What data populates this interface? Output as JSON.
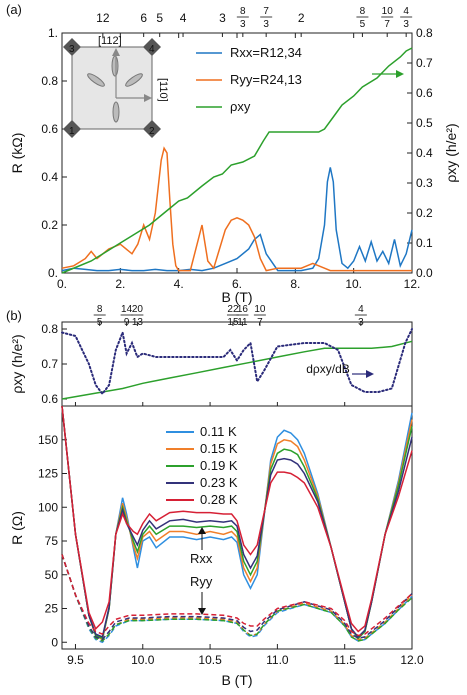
{
  "chart_data": [
    {
      "type": "line",
      "panel_label": "(a)",
      "xlabel": "B (T)",
      "ylabel_left": "R (kΩ)",
      "ylabel_right": "ρxy (h/e²)",
      "xlim": [
        0,
        12
      ],
      "ylim_left": [
        0,
        1.0
      ],
      "ylim_right": [
        0,
        0.8
      ],
      "x_ticks": [
        "0.",
        "2.",
        "4.",
        "6.",
        "8.",
        "10.",
        "12."
      ],
      "y_left_ticks": [
        "0.",
        "0.2",
        "0.4",
        "0.6",
        "0.8",
        "1."
      ],
      "y_right_ticks": [
        "0.0",
        "0.1",
        "0.2",
        "0.3",
        "0.4",
        "0.5",
        "0.6",
        "0.7",
        "0.8"
      ],
      "filling_factors": [
        {
          "label": "12",
          "B": 1.4
        },
        {
          "label": "6",
          "B": 2.8
        },
        {
          "label": "5",
          "B": 3.35
        },
        {
          "label": "4",
          "B": 4.15
        },
        {
          "label": "3",
          "B": 5.5
        },
        {
          "label": "8/3",
          "B": 6.2
        },
        {
          "label": "7/3",
          "B": 7.0
        },
        {
          "label": "2",
          "B": 8.2
        },
        {
          "label": "8/5",
          "B": 10.3
        },
        {
          "label": "10/7",
          "B": 11.15
        },
        {
          "label": "4/3",
          "B": 11.8
        }
      ],
      "inset": {
        "direction_top": "[112]",
        "direction_right": "[110]",
        "contacts": [
          "1",
          "2",
          "3",
          "4"
        ]
      },
      "series": [
        {
          "name": "Rxx=R12,34",
          "color": "#1f77c4",
          "axis": "left",
          "x": [
            0,
            0.4,
            0.8,
            1.2,
            1.6,
            2.0,
            2.4,
            2.8,
            3.2,
            3.6,
            4.0,
            4.4,
            4.8,
            5.2,
            5.6,
            6.0,
            6.4,
            6.6,
            6.8,
            7.0,
            7.4,
            7.8,
            8.2,
            8.6,
            8.8,
            9.0,
            9.1,
            9.2,
            9.3,
            9.4,
            9.6,
            9.8,
            10.0,
            10.2,
            10.4,
            10.6,
            10.8,
            11.0,
            11.2,
            11.4,
            11.6,
            11.8,
            12.0
          ],
          "y": [
            0.01,
            0.02,
            0.015,
            0.01,
            0.01,
            0.015,
            0.01,
            0.01,
            0.015,
            0.01,
            0.01,
            0.015,
            0.01,
            0.02,
            0.04,
            0.06,
            0.1,
            0.14,
            0.16,
            0.08,
            0.01,
            0.01,
            0.01,
            0.02,
            0.06,
            0.2,
            0.38,
            0.44,
            0.38,
            0.18,
            0.04,
            0.02,
            0.05,
            0.11,
            0.05,
            0.13,
            0.05,
            0.09,
            0.04,
            0.14,
            0.03,
            0.08,
            0.18
          ]
        },
        {
          "name": "Ryy=R24,13",
          "color": "#ef6f1f",
          "axis": "left",
          "x": [
            0,
            0.4,
            0.8,
            1.0,
            1.2,
            1.6,
            2.0,
            2.4,
            2.6,
            2.8,
            2.9,
            3.0,
            3.2,
            3.4,
            3.5,
            3.6,
            3.7,
            3.8,
            3.9,
            4.0,
            4.4,
            4.8,
            5.0,
            5.2,
            5.4,
            5.6,
            5.8,
            6.0,
            6.2,
            6.4,
            6.6,
            6.8,
            7.0,
            7.4,
            7.8,
            8.2,
            8.4,
            8.6,
            8.8,
            9.0,
            9.2,
            9.4,
            9.6,
            9.8,
            10.0,
            10.2,
            10.4,
            10.6,
            10.8,
            11.0,
            11.2,
            11.4,
            11.6,
            11.8,
            12.0
          ],
          "y": [
            0.02,
            0.03,
            0.06,
            0.09,
            0.06,
            0.1,
            0.12,
            0.08,
            0.12,
            0.2,
            0.17,
            0.14,
            0.25,
            0.47,
            0.52,
            0.5,
            0.3,
            0.12,
            0.03,
            0.01,
            0.01,
            0.2,
            0.05,
            0.02,
            0.1,
            0.18,
            0.22,
            0.23,
            0.22,
            0.2,
            0.15,
            0.06,
            0.01,
            0.02,
            0.02,
            0.02,
            0.03,
            0.04,
            0.03,
            0.02,
            0.01,
            0.01,
            0.01,
            0.01,
            0.01,
            0.01,
            0.01,
            0.01,
            0.01,
            0.01,
            0.01,
            0.01,
            0.01,
            0.01,
            0.01
          ]
        },
        {
          "name": "ρxy",
          "color": "#2ca02c",
          "axis": "right",
          "x": [
            0,
            0.5,
            1.0,
            1.5,
            2.0,
            2.5,
            3.0,
            3.5,
            4.0,
            4.3,
            4.8,
            5.2,
            5.5,
            5.8,
            6.2,
            6.6,
            6.9,
            7.1,
            7.5,
            8.0,
            8.5,
            8.8,
            9.0,
            9.3,
            9.6,
            10.0,
            10.3,
            10.8,
            11.2,
            11.6,
            11.8,
            12.0
          ],
          "y": [
            0.0,
            0.02,
            0.04,
            0.07,
            0.1,
            0.13,
            0.16,
            0.2,
            0.24,
            0.25,
            0.29,
            0.32,
            0.33,
            0.36,
            0.37,
            0.39,
            0.44,
            0.47,
            0.47,
            0.47,
            0.47,
            0.47,
            0.48,
            0.52,
            0.56,
            0.59,
            0.62,
            0.65,
            0.69,
            0.72,
            0.74,
            0.75
          ]
        }
      ],
      "legend_position": "top-right"
    },
    {
      "type": "line",
      "panel_label": "(b)",
      "ylabel": "ρxy (h/e²)",
      "xlim": [
        9.4,
        12.0
      ],
      "ylim": [
        0.58,
        0.82
      ],
      "y_ticks": [
        "0.6",
        "0.7",
        "0.8"
      ],
      "filling_factors": [
        {
          "label": "8/5",
          "B": 9.68
        },
        {
          "label": "14/9",
          "B": 9.88
        },
        {
          "label": "20/13",
          "B": 9.96
        },
        {
          "label": "22/15",
          "B": 10.67
        },
        {
          "label": "16/11",
          "B": 10.74
        },
        {
          "label": "10/7",
          "B": 10.87
        },
        {
          "label": "4/3",
          "B": 11.62
        }
      ],
      "annotation": "dρxy/dB",
      "series": [
        {
          "name": "ρxy",
          "color": "#2ca02c",
          "style": "solid",
          "x": [
            9.4,
            9.55,
            9.7,
            9.85,
            10.0,
            10.2,
            10.4,
            10.6,
            10.8,
            11.0,
            11.2,
            11.35,
            11.5,
            11.7,
            11.85,
            12.0
          ],
          "y": [
            0.6,
            0.61,
            0.62,
            0.63,
            0.645,
            0.66,
            0.675,
            0.69,
            0.705,
            0.72,
            0.735,
            0.745,
            0.745,
            0.745,
            0.75,
            0.765
          ]
        },
        {
          "name": "dρxy/dB",
          "color": "#2b2b7a",
          "style": "dotted",
          "x": [
            9.4,
            9.5,
            9.6,
            9.65,
            9.7,
            9.75,
            9.8,
            9.85,
            9.88,
            9.92,
            9.96,
            10.0,
            10.1,
            10.2,
            10.4,
            10.6,
            10.65,
            10.7,
            10.75,
            10.8,
            10.85,
            10.9,
            11.0,
            11.2,
            11.35,
            11.45,
            11.55,
            11.65,
            11.75,
            11.85,
            11.95,
            12.0
          ],
          "y": [
            0.79,
            0.78,
            0.7,
            0.64,
            0.615,
            0.64,
            0.74,
            0.79,
            0.73,
            0.76,
            0.72,
            0.73,
            0.72,
            0.72,
            0.72,
            0.72,
            0.74,
            0.71,
            0.74,
            0.76,
            0.65,
            0.68,
            0.75,
            0.76,
            0.76,
            0.74,
            0.64,
            0.62,
            0.62,
            0.63,
            0.76,
            0.8
          ]
        }
      ]
    },
    {
      "type": "line",
      "xlabel": "B (T)",
      "ylabel": "R (Ω)",
      "xlim": [
        9.4,
        12.0
      ],
      "ylim": [
        -5,
        175
      ],
      "x_ticks": [
        "9.5",
        "10.0",
        "10.5",
        "11.0",
        "11.5",
        "12.0"
      ],
      "y_ticks": [
        "0",
        "25",
        "50",
        "75",
        "100",
        "125",
        "150"
      ],
      "labels": {
        "rxx": "Rxx",
        "ryy": "Ryy"
      },
      "legend_position": "top-left",
      "temperatures": [
        {
          "name": "0.11 K",
          "color": "#2f8fe0"
        },
        {
          "name": "0.15 K",
          "color": "#f07f2a"
        },
        {
          "name": "0.19 K",
          "color": "#2ca02c"
        },
        {
          "name": "0.23 K",
          "color": "#33327a"
        },
        {
          "name": "0.28 K",
          "color": "#d62035"
        }
      ],
      "rxx_series": {
        "x": [
          9.4,
          9.5,
          9.6,
          9.65,
          9.7,
          9.75,
          9.8,
          9.85,
          9.88,
          9.93,
          9.96,
          10.0,
          10.05,
          10.1,
          10.2,
          10.3,
          10.4,
          10.5,
          10.6,
          10.66,
          10.7,
          10.75,
          10.8,
          10.85,
          10.88,
          10.95,
          11.0,
          11.05,
          11.1,
          11.15,
          11.2,
          11.3,
          11.4,
          11.5,
          11.55,
          11.6,
          11.65,
          11.7,
          11.8,
          11.9,
          12.0
        ],
        "values": [
          [
            180,
            80,
            20,
            5,
            2,
            25,
            80,
            107,
            95,
            70,
            55,
            75,
            78,
            70,
            78,
            78,
            76,
            78,
            76,
            78,
            74,
            50,
            40,
            50,
            75,
            135,
            152,
            157,
            155,
            150,
            140,
            110,
            70,
            30,
            10,
            3,
            8,
            30,
            80,
            120,
            170
          ],
          [
            180,
            80,
            20,
            5,
            2,
            25,
            80,
            103,
            92,
            72,
            62,
            78,
            82,
            75,
            82,
            82,
            80,
            82,
            80,
            82,
            78,
            55,
            45,
            55,
            78,
            132,
            147,
            150,
            149,
            145,
            135,
            108,
            70,
            30,
            10,
            3,
            8,
            30,
            80,
            118,
            165
          ],
          [
            180,
            80,
            20,
            5,
            3,
            25,
            80,
            100,
            90,
            75,
            67,
            80,
            86,
            80,
            86,
            86,
            85,
            86,
            85,
            86,
            82,
            60,
            50,
            60,
            80,
            128,
            140,
            143,
            142,
            139,
            130,
            106,
            70,
            30,
            10,
            3,
            8,
            30,
            80,
            116,
            160
          ],
          [
            180,
            80,
            20,
            6,
            4,
            26,
            80,
            98,
            88,
            78,
            72,
            83,
            90,
            84,
            90,
            91,
            89,
            90,
            89,
            90,
            86,
            65,
            55,
            64,
            82,
            124,
            135,
            136,
            135,
            132,
            125,
            104,
            70,
            30,
            10,
            4,
            9,
            30,
            80,
            112,
            152
          ],
          [
            175,
            80,
            22,
            10,
            15,
            30,
            80,
            95,
            88,
            82,
            80,
            88,
            95,
            90,
            96,
            97,
            96,
            96,
            95,
            95,
            90,
            72,
            65,
            72,
            86,
            118,
            126,
            126,
            125,
            122,
            118,
            100,
            70,
            32,
            14,
            8,
            12,
            32,
            80,
            108,
            142
          ]
        ]
      },
      "ryy_series": {
        "x": [
          9.4,
          9.5,
          9.6,
          9.65,
          9.7,
          9.75,
          9.8,
          9.9,
          10.0,
          10.2,
          10.4,
          10.6,
          10.7,
          10.75,
          10.8,
          10.85,
          10.9,
          11.0,
          11.2,
          11.4,
          11.5,
          11.55,
          11.6,
          11.65,
          11.7,
          11.8,
          11.9,
          12.0
        ],
        "values": [
          [
            65,
            35,
            10,
            2,
            0,
            5,
            12,
            16,
            16,
            17,
            17,
            16,
            14,
            8,
            4,
            5,
            12,
            22,
            28,
            22,
            12,
            4,
            1,
            2,
            6,
            14,
            24,
            34
          ],
          [
            65,
            35,
            11,
            3,
            1,
            6,
            13,
            17,
            17,
            18,
            18,
            17,
            15,
            9,
            5,
            6,
            13,
            23,
            29,
            23,
            13,
            5,
            2,
            3,
            7,
            15,
            25,
            35
          ],
          [
            65,
            35,
            11,
            3,
            1,
            6,
            13,
            16,
            16,
            17,
            17,
            16,
            14,
            9,
            5,
            6,
            13,
            23,
            28,
            22,
            12,
            4,
            1,
            2,
            6,
            14,
            24,
            33
          ],
          [
            65,
            35,
            12,
            4,
            2,
            8,
            15,
            18,
            18,
            19,
            19,
            18,
            16,
            11,
            8,
            9,
            15,
            24,
            30,
            24,
            14,
            6,
            3,
            4,
            8,
            16,
            26,
            36
          ],
          [
            65,
            35,
            14,
            8,
            6,
            12,
            17,
            20,
            20,
            21,
            21,
            20,
            18,
            14,
            12,
            12,
            17,
            25,
            30,
            25,
            16,
            8,
            5,
            6,
            10,
            18,
            27,
            36
          ]
        ]
      }
    }
  ]
}
